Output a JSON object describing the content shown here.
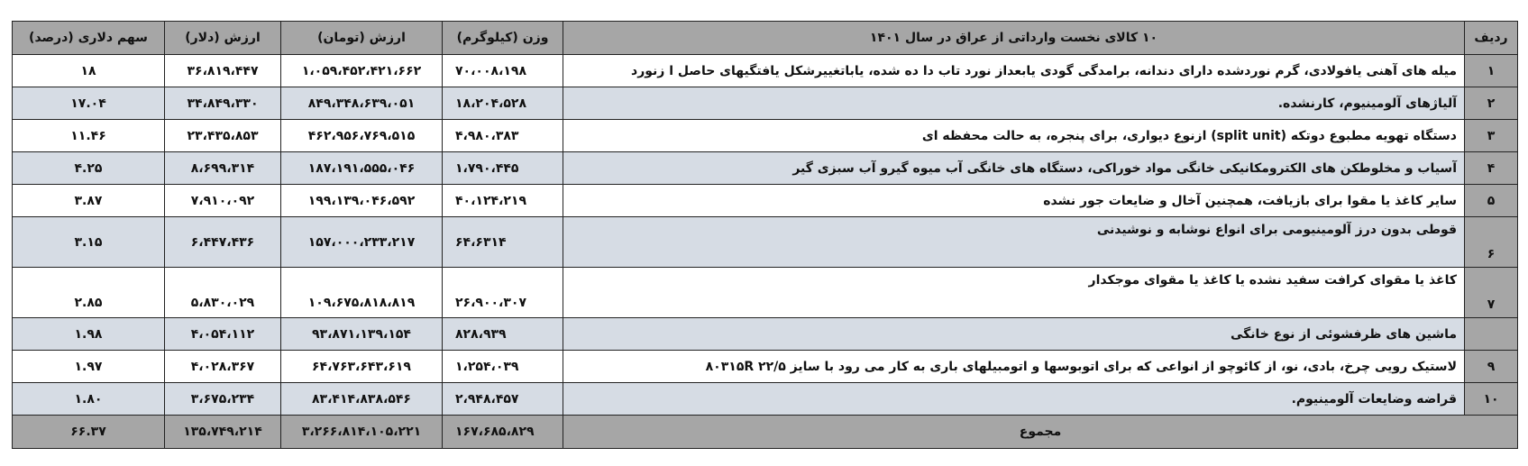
{
  "table": {
    "headers": {
      "rank": "ردیف",
      "description": "۱۰ کالای نخست وارداتی از عراق در سال ۱۴۰۱",
      "weight": "وزن (کیلوگرم)",
      "value_toman": "ارزش (تومان)",
      "value_dollar": "ارزش (دلار)",
      "dollar_share": "سهم دلاری (درصد)"
    },
    "rows": [
      {
        "rank": "۱",
        "description": "میله های آهنی یافولادی، گرم نوردشده دارای دندانه، برامدگی گودی یابعداز نورد تاب دا ده شده، یاباتغییرشکل یافتگیهای حاصل ا زنورد",
        "weight": "۷۰،۰۰۸،۱۹۸",
        "value_toman": "۱،۰۵۹،۴۵۲،۴۲۱،۶۶۲",
        "value_dollar": "۳۶،۸۱۹،۴۴۷",
        "dollar_share": "۱۸"
      },
      {
        "rank": "۲",
        "description": "آلیاژهای آلومینیوم، کارنشده.",
        "weight": "۱۸،۲۰۴،۵۲۸",
        "value_toman": "۸۴۹،۳۴۸،۶۳۹،۰۵۱",
        "value_dollar": "۳۴،۸۴۹،۳۳۰",
        "dollar_share": "۱۷.۰۴"
      },
      {
        "rank": "۳",
        "description": "دستگاه تهویه مطبوع دوتکه (split unit) ازنوع دیواری، برای پنجره، به حالت محفظه ای",
        "weight": "۴،۹۸۰،۳۸۳",
        "value_toman": "۴۶۲،۹۵۶،۷۶۹،۵۱۵",
        "value_dollar": "۲۳،۴۳۵،۸۵۳",
        "dollar_share": "۱۱.۴۶"
      },
      {
        "rank": "۴",
        "description": "آسیاب و مخلوطکن های الکترومکانیکی خانگی مواد خوراکی، دستگاه های خانگی آب میوه گیرو آب سبزی گیر",
        "weight": "۱،۷۹۰،۴۴۵",
        "value_toman": "۱۸۷،۱۹۱،۵۵۵،۰۴۶",
        "value_dollar": "۸،۶۹۹،۳۱۴",
        "dollar_share": "۴.۲۵"
      },
      {
        "rank": "۵",
        "description": "سایر کاغذ یا مقوا برای بازیافت، همچنین آخال و ضایعات جور نشده",
        "weight": "۴۰،۱۲۴،۲۱۹",
        "value_toman": "۱۹۹،۱۳۹،۰۴۶،۵۹۲",
        "value_dollar": "۷،۹۱۰،۰۹۲",
        "dollar_share": "۳.۸۷"
      },
      {
        "rank": "۶",
        "description": "قوطی بدون درز آلومینیومی برای انواع نوشابه و نوشیدنی",
        "weight": "۶۴،۶۳۱۴",
        "value_toman": "۱۵۷،۰۰۰،۲۳۳،۲۱۷",
        "value_dollar": "۶،۴۴۷،۴۳۶",
        "dollar_share": "۳.۱۵"
      },
      {
        "rank": "۷",
        "description": "کاغذ یا مقوای کرافت سفید نشده یا کاغذ یا مقوای موجکدار",
        "weight": "۲۶،۹۰۰،۳۰۷",
        "value_toman": "۱۰۹،۶۷۵،۸۱۸،۸۱۹",
        "value_dollar": "۵،۸۳۰،۰۲۹",
        "dollar_share": "۲.۸۵"
      },
      {
        "rank": "",
        "description": "ماشین های ظرفشوئی از نوع خانگی",
        "weight": "۸۲۸،۹۳۹",
        "value_toman": "۹۳،۸۷۱،۱۳۹،۱۵۴",
        "value_dollar": "۴،۰۵۴،۱۱۲",
        "dollar_share": "۱.۹۸"
      },
      {
        "rank": "۹",
        "description": "لاستیک رویی چرخ، بادی، نو، از کائوچو از انواعی که برای اتوبوسها و اتومبیلهای باری به کار می رود با سایز ۲۲/۵  ۸۰۳۱۵R",
        "weight": "۱،۲۵۴،۰۳۹",
        "value_toman": "۶۴،۷۶۳،۶۴۳،۶۱۹",
        "value_dollar": "۴،۰۲۸،۳۶۷",
        "dollar_share": "۱.۹۷"
      },
      {
        "rank": "۱۰",
        "description": "قراضه وضایعات آلومینیوم.",
        "weight": "۲،۹۴۸،۴۵۷",
        "value_toman": "۸۳،۴۱۴،۸۳۸،۵۴۶",
        "value_dollar": "۳،۶۷۵،۲۳۴",
        "dollar_share": "۱.۸۰"
      }
    ],
    "total": {
      "label": "مجموع",
      "weight": "۱۶۷،۶۸۵،۸۲۹",
      "value_toman": "۳،۲۶۶،۸۱۴،۱۰۵،۲۲۱",
      "value_dollar": "۱۳۵،۷۴۹،۲۱۴",
      "dollar_share": "۶۶.۳۷"
    }
  },
  "colors": {
    "header": "#a6a6a6",
    "alt_row": "#d6dce4",
    "row": "#ffffff",
    "total": "#a6a6a6"
  }
}
